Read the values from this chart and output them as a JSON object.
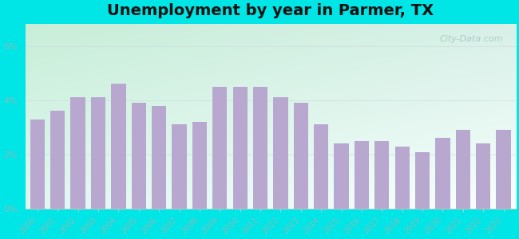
{
  "years": [
    2000,
    2001,
    2002,
    2003,
    2004,
    2005,
    2006,
    2007,
    2008,
    2009,
    2010,
    2011,
    2012,
    2013,
    2014,
    2015,
    2016,
    2017,
    2018,
    2019,
    2020,
    2021,
    2022,
    2023
  ],
  "values": [
    3.3,
    3.6,
    4.1,
    4.1,
    4.6,
    3.9,
    3.8,
    3.1,
    3.2,
    4.5,
    4.5,
    4.5,
    4.1,
    3.9,
    3.1,
    2.4,
    2.5,
    2.5,
    2.3,
    2.1,
    2.6,
    2.9,
    2.4,
    2.9
  ],
  "bar_color": "#b8a8d0",
  "outer_background": "#00e5e5",
  "bg_top_left": "#c8eed8",
  "bg_bottom_right": "#f0faf8",
  "title": "Unemployment by year in Parmer, TX",
  "title_fontsize": 14,
  "ylabel_ticks": [
    "0%",
    "2%",
    "4%",
    "6%"
  ],
  "yticks": [
    0,
    2,
    4,
    6
  ],
  "ylim": [
    0,
    6.8
  ],
  "watermark": "City-Data.com",
  "tick_color": "#88bbbb",
  "label_color": "#779999"
}
